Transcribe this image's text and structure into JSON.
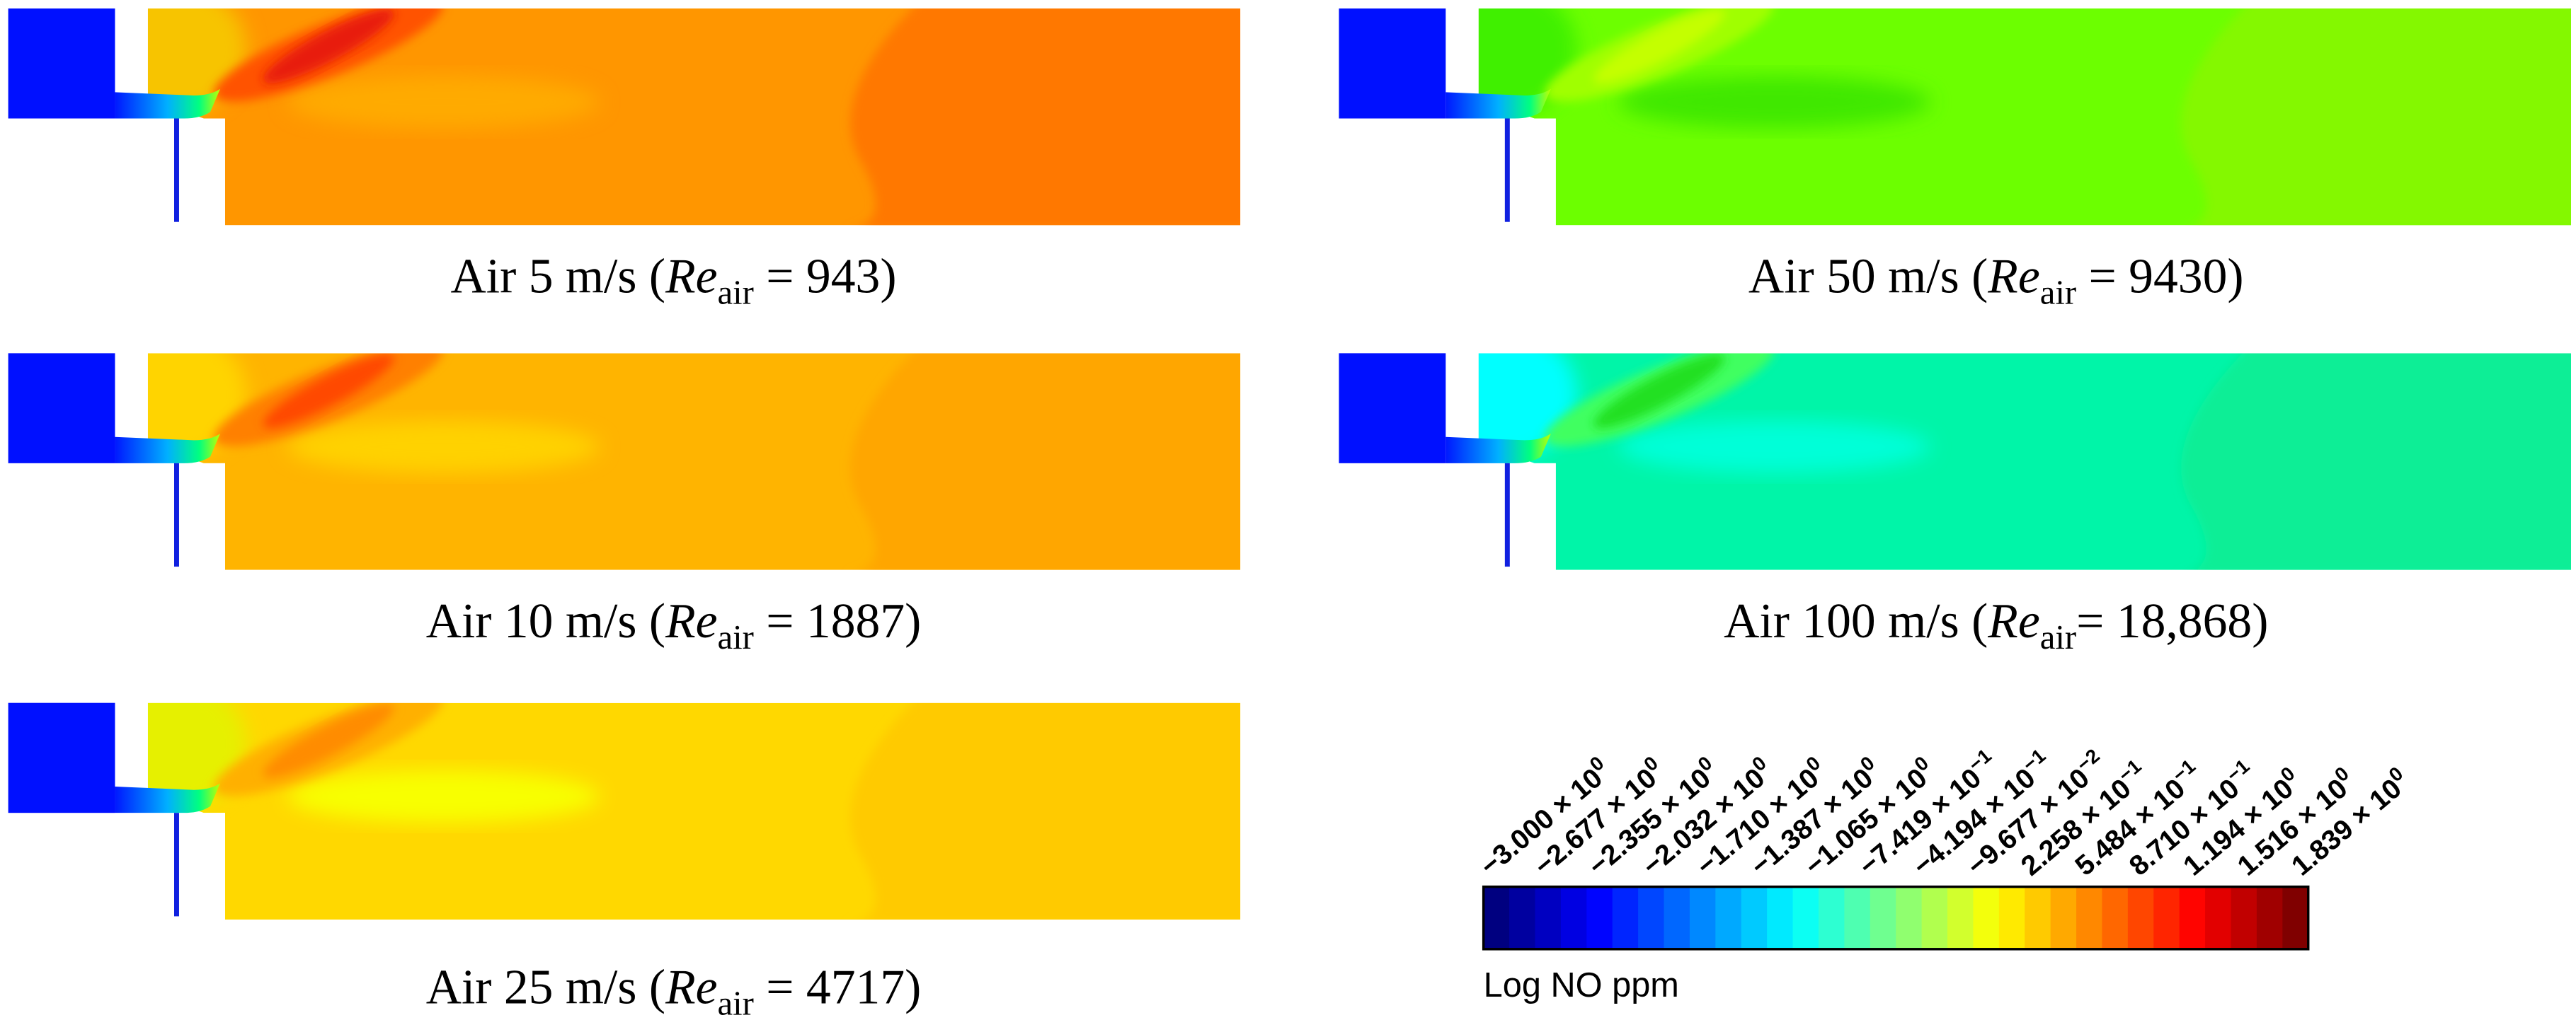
{
  "panels": [
    {
      "caption": {
        "before": "Air 5 m/s (",
        "symbol": "Re",
        "subscript": "air",
        "after": " =  943)"
      }
    },
    {
      "caption": {
        "before": "Air 10 m/s (",
        "symbol": "Re",
        "subscript": "air",
        "after": " =  1887)"
      }
    },
    {
      "caption": {
        "before": "Air 25 m/s (",
        "symbol": "Re",
        "subscript": "air",
        "after": " =  4717)"
      }
    },
    {
      "caption": {
        "before": "Air 50 m/s (",
        "symbol": "Re",
        "subscript": "air",
        "after": " =  9430)"
      }
    },
    {
      "caption": {
        "before": "Air 100 m/s (",
        "symbol": "Re",
        "subscript": "air",
        "after": "=  18,868)"
      }
    }
  ],
  "colorbar": {
    "title": "Log NO ppm",
    "ticks": [
      {
        "mantissa": "−3.000 × 10",
        "exponent": "0"
      },
      {
        "mantissa": "−2.677 × 10",
        "exponent": "0"
      },
      {
        "mantissa": "−2.355 × 10",
        "exponent": "0"
      },
      {
        "mantissa": "−2.032 × 10",
        "exponent": "0"
      },
      {
        "mantissa": "−1.710 × 10",
        "exponent": "0"
      },
      {
        "mantissa": "−1.387 × 10",
        "exponent": "0"
      },
      {
        "mantissa": "−1.065 × 10",
        "exponent": "0"
      },
      {
        "mantissa": "−7.419 × 10",
        "exponent": "−1"
      },
      {
        "mantissa": "−4.194 × 10",
        "exponent": "−1"
      },
      {
        "mantissa": "−9.677 × 10",
        "exponent": "−2"
      },
      {
        "mantissa": "2.258 × 10",
        "exponent": "−1"
      },
      {
        "mantissa": "5.484 × 10",
        "exponent": "−1"
      },
      {
        "mantissa": "8.710 × 10",
        "exponent": "−1"
      },
      {
        "mantissa": "1.194 × 10",
        "exponent": "0"
      },
      {
        "mantissa": "1.516 × 10",
        "exponent": "0"
      },
      {
        "mantissa": "1.839 × 10",
        "exponent": "0"
      }
    ]
  }
}
